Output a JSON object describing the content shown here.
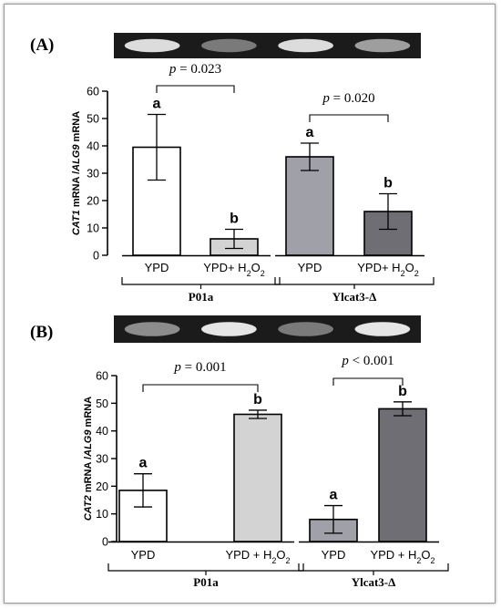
{
  "chart_data": [
    {
      "type": "bar",
      "panel_label": "(A)",
      "categories": [
        "YPD",
        "YPD+ H2O2",
        "YPD",
        "YPD+ H2O2"
      ],
      "category_display": [
        {
          "main": "YPD",
          "sub": ""
        },
        {
          "main": "YPD+ H",
          "sub": "2",
          "tail": "O",
          "sub2": "2"
        },
        {
          "main": "YPD",
          "sub": ""
        },
        {
          "main": "YPD+ H",
          "sub": "2",
          "tail": "O",
          "sub2": "2"
        }
      ],
      "values": [
        39.5,
        6.0,
        36.0,
        16.0
      ],
      "errors": [
        12.0,
        3.5,
        5.0,
        6.5
      ],
      "letters": [
        "a",
        "b",
        "a",
        "b"
      ],
      "colors": [
        "#ffffff",
        "#d3d3d3",
        "#a0a0a8",
        "#6e6e74"
      ],
      "groups": [
        {
          "label": "P01a",
          "members": [
            0,
            1
          ]
        },
        {
          "label": "Ylcat3-Δ",
          "members": [
            2,
            3
          ]
        }
      ],
      "pvalues": [
        {
          "text": "p = 0.023",
          "pair": [
            0,
            1
          ]
        },
        {
          "text": "p = 0.020",
          "pair": [
            2,
            3
          ]
        }
      ],
      "ylabel_parts": [
        "CAT1",
        " mRNA /",
        "ALG9",
        " mRNA"
      ],
      "ylim": [
        0,
        60
      ],
      "yticks": [
        0,
        10,
        20,
        30,
        40,
        50,
        60
      ],
      "gel_band_intensity": [
        0.9,
        0.35,
        0.9,
        0.55
      ]
    },
    {
      "type": "bar",
      "panel_label": "(B)",
      "categories": [
        "YPD",
        "YPD + H2O2",
        "YPD",
        "YPD + H2O2"
      ],
      "category_display": [
        {
          "main": "YPD",
          "sub": ""
        },
        {
          "main": "YPD + H",
          "sub": "2",
          "tail": "O",
          "sub2": "2"
        },
        {
          "main": "YPD",
          "sub": ""
        },
        {
          "main": "YPD + H",
          "sub": "2",
          "tail": "O",
          "sub2": "2"
        }
      ],
      "values": [
        18.5,
        46.0,
        8.0,
        48.0
      ],
      "errors": [
        6.0,
        1.5,
        5.0,
        2.5
      ],
      "letters": [
        "a",
        "b",
        "a",
        "b"
      ],
      "colors": [
        "#ffffff",
        "#d3d3d3",
        "#a0a0a8",
        "#6e6e74"
      ],
      "groups": [
        {
          "label": "P01a",
          "members": [
            0,
            1
          ]
        },
        {
          "label": "Ylcat3-Δ",
          "members": [
            2,
            3
          ]
        }
      ],
      "pvalues": [
        {
          "text": "p = 0.001",
          "pair": [
            0,
            1
          ]
        },
        {
          "text": "p < 0.001",
          "pair": [
            2,
            3
          ]
        }
      ],
      "ylabel_parts": [
        "CAT2",
        " mRNA /",
        "ALG9",
        " mRNA"
      ],
      "ylim": [
        0,
        60
      ],
      "yticks": [
        0,
        10,
        20,
        30,
        40,
        50,
        60
      ],
      "gel_band_intensity": [
        0.45,
        0.95,
        0.35,
        0.95
      ]
    }
  ]
}
